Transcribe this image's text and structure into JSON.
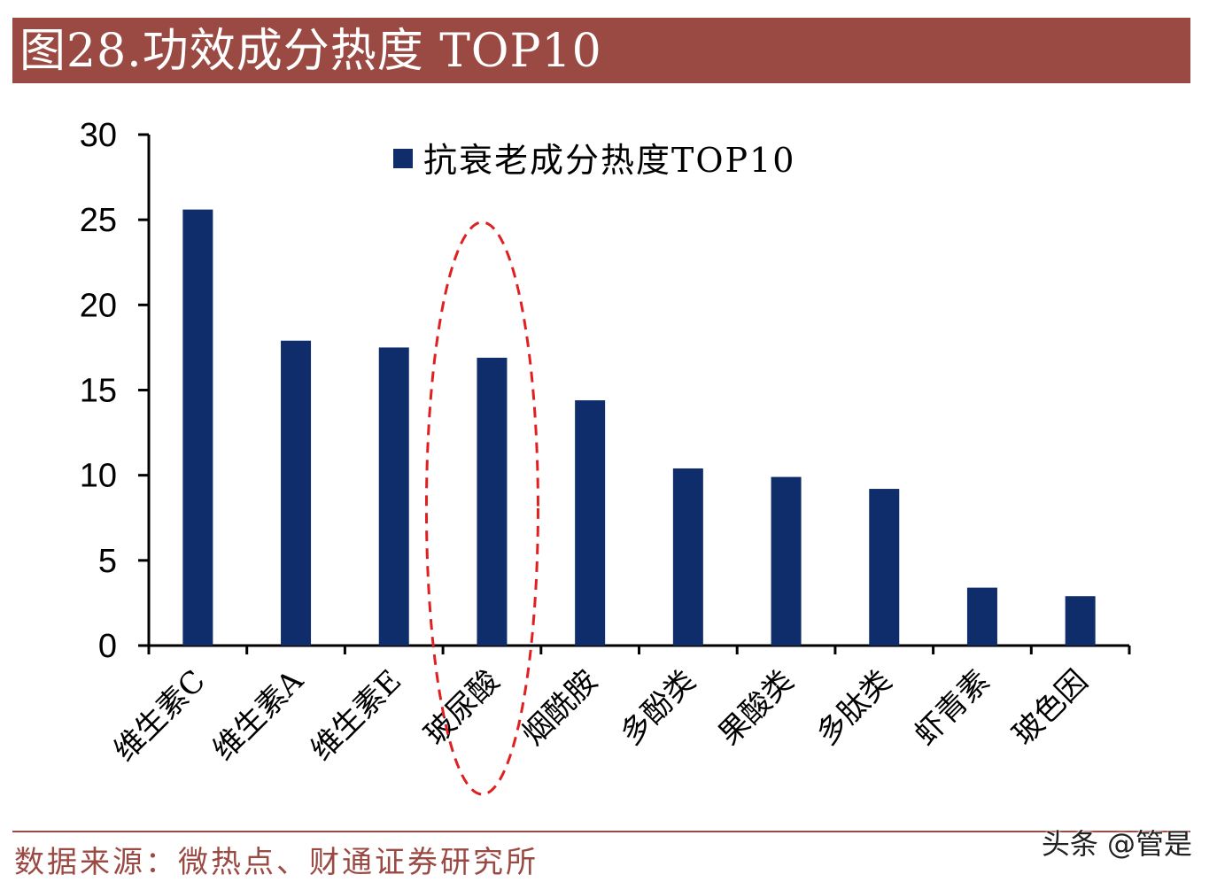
{
  "header": {
    "title": "图28.功效成分热度 TOP10"
  },
  "source": {
    "text": "数据来源：微热点、财通证券研究所"
  },
  "watermark": {
    "text": "头条 @管是"
  },
  "colors": {
    "title_bg": "#9b4a43",
    "bar": "#0f2d6b",
    "highlight": "#e02020"
  },
  "chart_data": {
    "type": "bar",
    "title": "",
    "xlabel": "",
    "ylabel": "",
    "ylim": [
      0,
      30
    ],
    "yticks": [
      0,
      5,
      10,
      15,
      20,
      25,
      30
    ],
    "categories": [
      "维生素C",
      "维生素A",
      "维生素E",
      "玻尿酸",
      "烟酰胺",
      "多酚类",
      "果酸类",
      "多肽类",
      "虾青素",
      "玻色因"
    ],
    "series": [
      {
        "name": "抗衰老成分热度TOP10",
        "values": [
          25.6,
          17.9,
          17.5,
          16.9,
          14.4,
          10.4,
          9.9,
          9.2,
          3.4,
          2.9
        ]
      }
    ],
    "legend_position": "top-center",
    "grid": false,
    "annotation": {
      "type": "dashed-ellipse",
      "category": "玻尿酸"
    }
  }
}
